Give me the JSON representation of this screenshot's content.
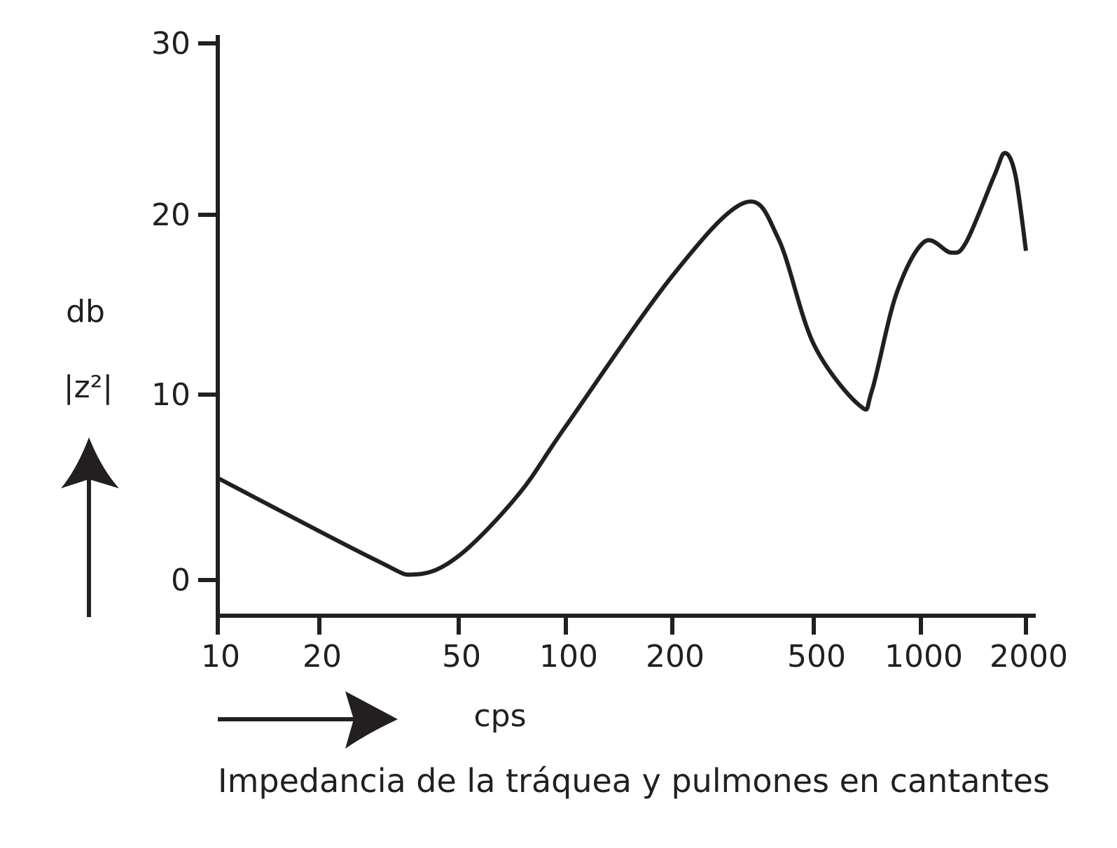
{
  "chart_data": {
    "type": "line",
    "title": "Impedancia de la tráquea y pulmones en cantantes",
    "xlabel": "cps",
    "ylabel_lines": [
      "db",
      "|z²|"
    ],
    "x_scale": "log",
    "xlim": [
      10,
      2000
    ],
    "ylim": [
      -2,
      30
    ],
    "x_ticks": [
      10,
      20,
      50,
      100,
      200,
      500,
      1000,
      2000
    ],
    "x_tick_labels": [
      "10",
      "20",
      "50",
      "100",
      "200",
      "500",
      "1000",
      "2000"
    ],
    "y_ticks": [
      0,
      10,
      20,
      30
    ],
    "y_tick_labels": [
      "0",
      "10",
      "20",
      "30"
    ],
    "grid": false,
    "line_color": "#231f20",
    "series": [
      {
        "x": [
          10,
          28.8,
          37.6,
          50,
          73.5,
          100,
          200,
          319,
          397,
          500,
          674,
          728,
          853,
          1023,
          1219,
          1350,
          1624,
          1741,
          1866,
          2000
        ],
        "y": [
          5.5,
          1.1,
          0.3,
          1.3,
          4.6,
          8.3,
          16.6,
          20.7,
          18.7,
          12.8,
          9.4,
          10.2,
          15.6,
          18.5,
          17.9,
          18.5,
          22.3,
          23.6,
          22.3,
          18.0
        ]
      }
    ]
  }
}
